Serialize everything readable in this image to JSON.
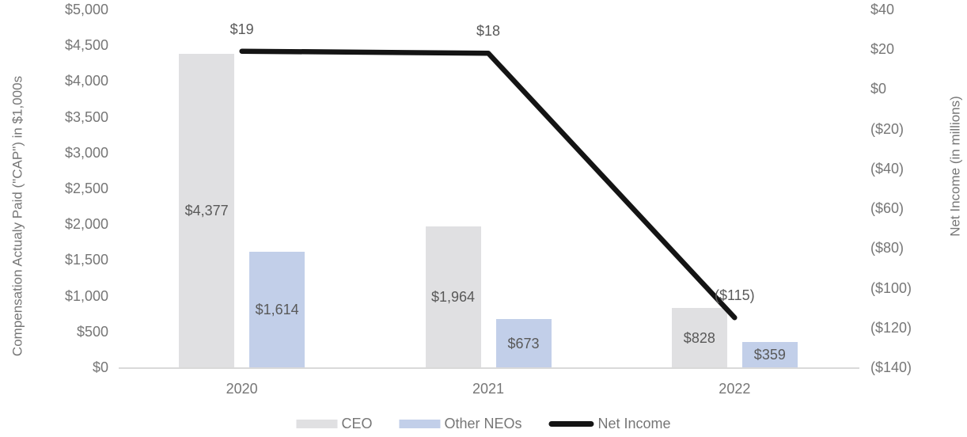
{
  "chart_data": {
    "type": "bar+line combo",
    "categories": [
      "2020",
      "2021",
      "2022"
    ],
    "series": [
      {
        "name": "CEO",
        "type": "bar",
        "axis": "left",
        "color": "#e0e0e2",
        "values": [
          4377,
          1964,
          828
        ],
        "labels": [
          "$4,377",
          "$1,964",
          "$828"
        ]
      },
      {
        "name": "Other NEOs",
        "type": "bar",
        "axis": "left",
        "color": "#c2cfe9",
        "values": [
          1614,
          673,
          359
        ],
        "labels": [
          "$1,614",
          "$673",
          "$359"
        ]
      },
      {
        "name": "Net Income",
        "type": "line",
        "axis": "right",
        "color": "#141414",
        "values": [
          19,
          18,
          -115
        ],
        "labels": [
          "$19",
          "$18",
          "($115)"
        ]
      }
    ],
    "left_axis": {
      "title": "Compensation Actualy Paid (\"CAP\") in $1,000s",
      "min": 0,
      "max": 5000,
      "step": 500,
      "tick_labels": [
        "$5,000",
        "$4,500",
        "$4,000",
        "$3,500",
        "$3,000",
        "$2,500",
        "$2,000",
        "$1,500",
        "$1,000",
        "$500",
        "$0"
      ]
    },
    "right_axis": {
      "title": "Net Income (in millions)",
      "min": -140,
      "max": 40,
      "step": 20,
      "tick_labels": [
        "$40",
        "$20",
        "$0",
        "($20)",
        "($40)",
        "($60)",
        "($80)",
        "($100)",
        "($120)",
        "($140)"
      ]
    },
    "legend": {
      "position": "bottom",
      "entries": [
        "CEO",
        "Other NEOs",
        "Net Income"
      ]
    },
    "grid": false,
    "styles": {
      "tick_text_color": "#767676",
      "data_label_color": "#595959",
      "axis_line_color": "#d9d9d9",
      "background": "#ffffff"
    }
  }
}
